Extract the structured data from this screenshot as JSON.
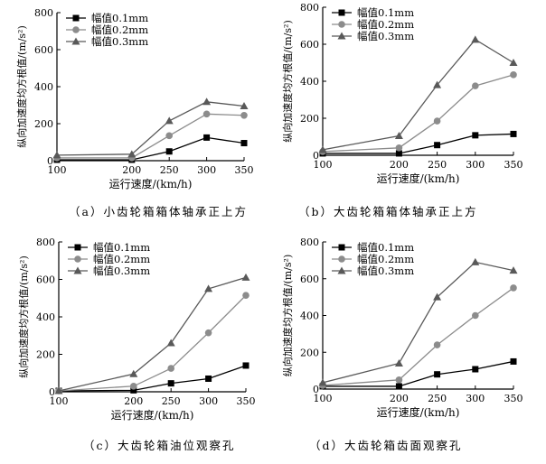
{
  "chart_data": [
    {
      "type": "line",
      "title": "",
      "caption": "（a）小齿轮箱箱体轴承正上方",
      "xlabel": "运行速度/(km/h)",
      "ylabel": "纵向加速度均方根值/(m/s²)",
      "x": [
        100,
        200,
        250,
        300,
        350
      ],
      "xticks": [
        100,
        200,
        250,
        300,
        350
      ],
      "xlim": [
        100,
        350
      ],
      "ylim": [
        0,
        800
      ],
      "yticks": [
        0,
        200,
        400,
        600,
        800
      ],
      "legend_position": "top-left",
      "series": [
        {
          "name": "幅值0.1mm",
          "marker": "square",
          "color": "#000000",
          "values": [
            5,
            5,
            50,
            125,
            95
          ]
        },
        {
          "name": "幅值0.2mm",
          "marker": "circle",
          "color": "#8c8c8c",
          "values": [
            15,
            15,
            135,
            252,
            245
          ]
        },
        {
          "name": "幅值0.3mm",
          "marker": "triangle",
          "color": "#595959",
          "values": [
            30,
            35,
            215,
            318,
            295
          ]
        }
      ]
    },
    {
      "type": "line",
      "title": "",
      "caption": "（b）大齿轮箱箱体轴承正上方",
      "xlabel": "运行速度/(km/h)",
      "ylabel": "纵向加速度均方根值/(m/s²)",
      "x": [
        100,
        200,
        250,
        300,
        350
      ],
      "xticks": [
        100,
        200,
        250,
        300,
        350
      ],
      "xlim": [
        100,
        350
      ],
      "ylim": [
        0,
        800
      ],
      "yticks": [
        0,
        200,
        400,
        600,
        800
      ],
      "legend_position": "top-left",
      "series": [
        {
          "name": "幅值0.1mm",
          "marker": "square",
          "color": "#000000",
          "values": [
            10,
            10,
            55,
            108,
            115
          ]
        },
        {
          "name": "幅值0.2mm",
          "marker": "circle",
          "color": "#8c8c8c",
          "values": [
            20,
            40,
            185,
            375,
            435
          ]
        },
        {
          "name": "幅值0.3mm",
          "marker": "triangle",
          "color": "#595959",
          "values": [
            30,
            105,
            380,
            625,
            500
          ]
        }
      ]
    },
    {
      "type": "line",
      "title": "",
      "caption": "（c）大齿轮箱油位观察孔",
      "xlabel": "运行速度/(km/h)",
      "ylabel": "纵向加速度均方根值/(m/s²)",
      "x": [
        100,
        200,
        250,
        300,
        350
      ],
      "xticks": [
        100,
        200,
        250,
        300,
        350
      ],
      "xlim": [
        100,
        350
      ],
      "ylim": [
        0,
        800
      ],
      "yticks": [
        0,
        200,
        400,
        600,
        800
      ],
      "legend_position": "top-left",
      "series": [
        {
          "name": "幅值0.1mm",
          "marker": "square",
          "color": "#000000",
          "values": [
            5,
            8,
            45,
            70,
            140
          ]
        },
        {
          "name": "幅值0.2mm",
          "marker": "circle",
          "color": "#8c8c8c",
          "values": [
            5,
            30,
            125,
            315,
            515
          ]
        },
        {
          "name": "幅值0.3mm",
          "marker": "triangle",
          "color": "#595959",
          "values": [
            5,
            95,
            260,
            550,
            610
          ]
        }
      ]
    },
    {
      "type": "line",
      "title": "",
      "caption": "（d）大齿轮箱齿面观察孔",
      "xlabel": "运行速度/(km/h)",
      "ylabel": "纵向加速度均方根值/(m/s²)",
      "x": [
        100,
        200,
        250,
        300,
        350
      ],
      "xticks": [
        100,
        200,
        250,
        300,
        350
      ],
      "xlim": [
        100,
        350
      ],
      "ylim": [
        0,
        800
      ],
      "yticks": [
        0,
        200,
        400,
        600,
        800
      ],
      "legend_position": "top-left",
      "series": [
        {
          "name": "幅值0.1mm",
          "marker": "square",
          "color": "#000000",
          "values": [
            15,
            15,
            80,
            108,
            150
          ]
        },
        {
          "name": "幅值0.2mm",
          "marker": "circle",
          "color": "#8c8c8c",
          "values": [
            20,
            50,
            240,
            400,
            550
          ]
        },
        {
          "name": "幅值0.3mm",
          "marker": "triangle",
          "color": "#595959",
          "values": [
            35,
            140,
            500,
            690,
            645
          ]
        }
      ]
    }
  ]
}
